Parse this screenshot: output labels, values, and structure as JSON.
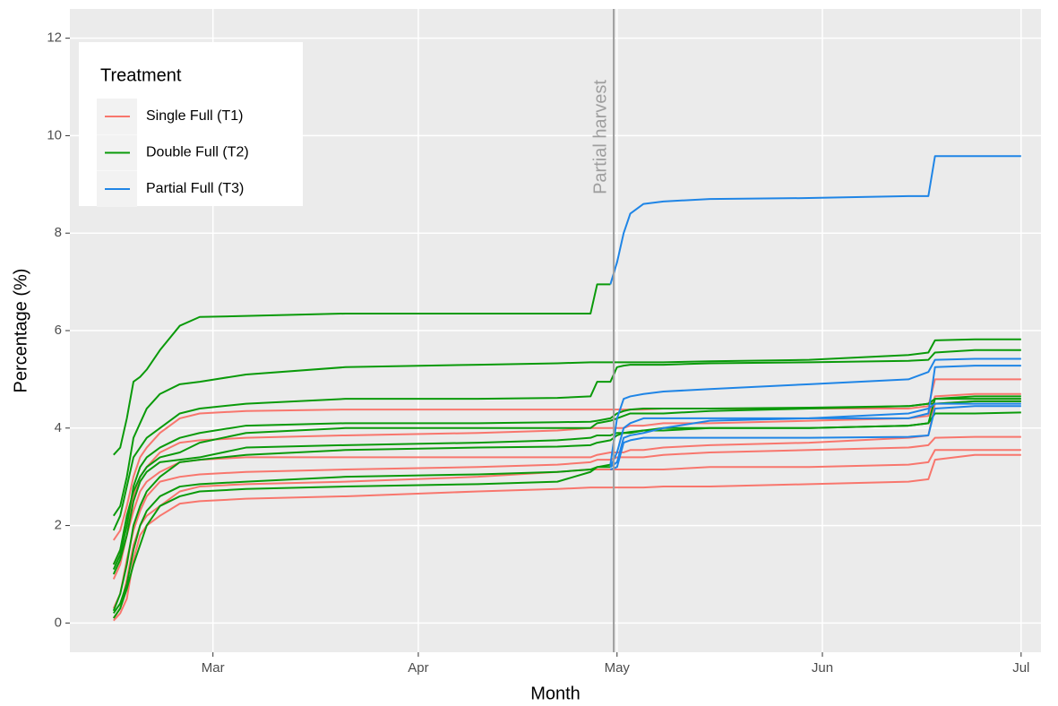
{
  "chart_data": {
    "type": "line",
    "x_label": "Month",
    "y_label": "Percentage (%)",
    "legend_title": "Treatment",
    "legend": "top-left",
    "grid": true,
    "annotation": {
      "text": "Partial harvest",
      "x": 120.5,
      "color": "#9e9e9e"
    },
    "x": [
      45,
      46,
      47,
      48,
      49,
      50,
      52,
      55,
      58,
      65,
      80,
      100,
      112,
      117,
      118,
      120,
      121,
      122,
      123,
      125,
      128,
      135,
      150,
      165,
      168,
      169,
      175,
      182
    ],
    "xlim": [
      38.4,
      185
    ],
    "xticks": [
      {
        "value": 60,
        "label": "Mar"
      },
      {
        "value": 91,
        "label": "Apr"
      },
      {
        "value": 121,
        "label": "May"
      },
      {
        "value": 152,
        "label": "Jun"
      },
      {
        "value": 182,
        "label": "Jul"
      }
    ],
    "ylim": [
      -0.6,
      12.6
    ],
    "yticks": [
      0,
      2,
      4,
      6,
      8,
      10,
      12
    ],
    "series": [
      {
        "name": "Single Full (T1)",
        "color": "#F8766D",
        "values": [
          1.7,
          1.9,
          2.4,
          3.0,
          3.4,
          3.6,
          3.9,
          4.2,
          4.3,
          4.35,
          4.38,
          4.38,
          4.38,
          4.38,
          4.38,
          4.38,
          4.38,
          4.38,
          4.38,
          4.38,
          4.4,
          4.4,
          4.4,
          4.4,
          4.45,
          5.0,
          5.0,
          5.0
        ]
      },
      {
        "name": "Double Full (T2)",
        "color": "#0a9a0a",
        "values": [
          3.45,
          3.6,
          4.2,
          4.95,
          5.05,
          5.2,
          5.6,
          6.1,
          6.28,
          6.3,
          6.35,
          6.35,
          6.35,
          6.35,
          6.95,
          6.95,
          null,
          null,
          null,
          null,
          null,
          null,
          null,
          null,
          null,
          null,
          null,
          null
        ]
      },
      {
        "name": "Partial Full (T3)",
        "color": "#1f85e6",
        "values": [
          null,
          null,
          null,
          null,
          null,
          null,
          null,
          null,
          null,
          null,
          null,
          null,
          null,
          null,
          null,
          6.95,
          7.4,
          8.0,
          8.4,
          8.6,
          8.65,
          8.7,
          8.72,
          8.76,
          8.76,
          9.58,
          9.58,
          9.58
        ]
      },
      {
        "name": "Single Full (T1)",
        "color": "#F8766D",
        "values": [
          1.2,
          1.5,
          2.0,
          2.6,
          3.0,
          3.2,
          3.5,
          3.7,
          3.75,
          3.8,
          3.85,
          3.9,
          3.95,
          4.0,
          4.0,
          4.0,
          4.0,
          4.0,
          4.05,
          4.05,
          4.1,
          4.1,
          4.15,
          4.2,
          4.25,
          4.65,
          4.7,
          4.7
        ]
      },
      {
        "name": "Single Full (T1)",
        "color": "#F8766D",
        "values": [
          0.9,
          1.2,
          1.8,
          2.3,
          2.7,
          2.9,
          3.1,
          3.3,
          3.35,
          3.4,
          3.4,
          3.4,
          3.4,
          3.4,
          3.45,
          3.5,
          3.5,
          3.5,
          3.55,
          3.55,
          3.6,
          3.65,
          3.7,
          3.8,
          3.85,
          4.5,
          4.55,
          4.55
        ]
      },
      {
        "name": "Single Full (T1)",
        "color": "#F8766D",
        "values": [
          0.3,
          0.6,
          1.3,
          1.9,
          2.3,
          2.6,
          2.9,
          3.0,
          3.05,
          3.1,
          3.15,
          3.2,
          3.25,
          3.3,
          3.35,
          3.35,
          3.4,
          3.4,
          3.4,
          3.4,
          3.45,
          3.5,
          3.55,
          3.6,
          3.65,
          3.8,
          3.82,
          3.82
        ]
      },
      {
        "name": "Single Full (T1)",
        "color": "#F8766D",
        "values": [
          0.1,
          0.3,
          0.9,
          1.6,
          2.0,
          2.2,
          2.4,
          2.7,
          2.8,
          2.85,
          2.9,
          3.0,
          3.1,
          3.15,
          3.15,
          3.15,
          3.15,
          3.15,
          3.15,
          3.15,
          3.15,
          3.2,
          3.2,
          3.25,
          3.3,
          3.55,
          3.55,
          3.55
        ]
      },
      {
        "name": "Single Full (T1)",
        "color": "#F8766D",
        "values": [
          0.05,
          0.2,
          0.5,
          1.3,
          1.8,
          2.0,
          2.2,
          2.45,
          2.5,
          2.55,
          2.6,
          2.7,
          2.75,
          2.78,
          2.78,
          2.78,
          2.78,
          2.78,
          2.78,
          2.78,
          2.8,
          2.8,
          2.85,
          2.9,
          2.95,
          3.35,
          3.45,
          3.45
        ]
      },
      {
        "name": "Double Full (T2)",
        "color": "#0a9a0a",
        "values": [
          2.2,
          2.4,
          3.0,
          3.8,
          4.1,
          4.4,
          4.7,
          4.9,
          4.95,
          5.1,
          5.25,
          5.3,
          5.33,
          5.35,
          5.35,
          5.35,
          5.35,
          5.35,
          5.35,
          5.35,
          5.35,
          5.37,
          5.4,
          5.5,
          5.55,
          5.8,
          5.82,
          5.82
        ]
      },
      {
        "name": "Double Full (T2)",
        "color": "#0a9a0a",
        "values": [
          1.9,
          2.2,
          2.8,
          3.4,
          3.6,
          3.8,
          4.0,
          4.3,
          4.4,
          4.5,
          4.6,
          4.6,
          4.62,
          4.65,
          4.95,
          4.95,
          5.25,
          5.28,
          5.3,
          5.3,
          5.3,
          5.33,
          5.35,
          5.38,
          5.4,
          5.55,
          5.6,
          5.6
        ]
      },
      {
        "name": "Double Full (T2)",
        "color": "#0a9a0a",
        "values": [
          1.1,
          1.4,
          2.0,
          2.8,
          3.2,
          3.4,
          3.6,
          3.8,
          3.9,
          4.05,
          4.1,
          4.1,
          4.12,
          4.13,
          4.15,
          4.2,
          4.3,
          4.35,
          4.38,
          4.4,
          4.4,
          4.4,
          4.42,
          4.45,
          4.5,
          4.6,
          4.6,
          4.6
        ]
      },
      {
        "name": "Double Full (T2)",
        "color": "#0a9a0a",
        "values": [
          1.2,
          1.5,
          2.2,
          2.7,
          3.0,
          3.2,
          3.4,
          3.5,
          3.7,
          3.9,
          4.0,
          4.0,
          4.0,
          4.0,
          4.1,
          4.15,
          4.2,
          4.25,
          4.3,
          4.3,
          4.3,
          4.35,
          4.4,
          4.45,
          4.5,
          4.5,
          4.55,
          4.55
        ]
      },
      {
        "name": "Double Full (T2)",
        "color": "#0a9a0a",
        "values": [
          1.0,
          1.3,
          1.8,
          2.5,
          2.9,
          3.1,
          3.3,
          3.35,
          3.4,
          3.6,
          3.65,
          3.7,
          3.75,
          3.8,
          3.85,
          3.85,
          3.9,
          3.9,
          3.92,
          3.95,
          3.95,
          4.0,
          4.0,
          4.05,
          4.1,
          4.3,
          4.3,
          4.32
        ]
      },
      {
        "name": "Double Full (T2)",
        "color": "#0a9a0a",
        "values": [
          0.25,
          0.6,
          1.2,
          2.0,
          2.4,
          2.7,
          3.0,
          3.3,
          3.35,
          3.45,
          3.55,
          3.6,
          3.62,
          3.65,
          3.7,
          3.75,
          3.85,
          3.9,
          3.9,
          3.95,
          4.0,
          4.0,
          4.0,
          4.05,
          4.1,
          4.6,
          4.65,
          4.65
        ]
      },
      {
        "name": "Double Full (T2)",
        "color": "#0a9a0a",
        "values": [
          0.2,
          0.4,
          0.8,
          1.5,
          2.0,
          2.3,
          2.6,
          2.8,
          2.85,
          2.9,
          3.0,
          3.05,
          3.1,
          3.15,
          3.2,
          3.25,
          null,
          null,
          null,
          null,
          null,
          null,
          null,
          null,
          null,
          null,
          null,
          null
        ]
      },
      {
        "name": "Double Full (T2)",
        "color": "#0a9a0a",
        "values": [
          0.1,
          0.3,
          0.7,
          1.2,
          1.6,
          2.0,
          2.4,
          2.6,
          2.7,
          2.75,
          2.8,
          2.85,
          2.9,
          3.1,
          3.2,
          3.2,
          null,
          null,
          null,
          null,
          null,
          null,
          null,
          null,
          null,
          null,
          null,
          null
        ]
      },
      {
        "name": "Partial Full (T3)",
        "color": "#1f85e6",
        "values": [
          null,
          null,
          null,
          null,
          null,
          null,
          null,
          null,
          null,
          null,
          null,
          null,
          null,
          null,
          null,
          3.25,
          4.2,
          4.6,
          4.65,
          4.7,
          4.75,
          4.8,
          4.9,
          5.0,
          5.15,
          5.4,
          5.42,
          5.42
        ]
      },
      {
        "name": "Partial Full (T3)",
        "color": "#1f85e6",
        "values": [
          null,
          null,
          null,
          null,
          null,
          null,
          null,
          null,
          null,
          null,
          null,
          null,
          null,
          null,
          null,
          3.2,
          3.5,
          4.0,
          4.1,
          4.2,
          4.2,
          4.2,
          4.2,
          4.2,
          4.3,
          5.25,
          5.28,
          5.28
        ]
      },
      {
        "name": "Partial Full (T3)",
        "color": "#1f85e6",
        "values": [
          null,
          null,
          null,
          null,
          null,
          null,
          null,
          null,
          null,
          null,
          null,
          null,
          null,
          null,
          null,
          3.2,
          3.3,
          3.8,
          3.85,
          3.9,
          4.0,
          4.15,
          4.2,
          4.3,
          4.4,
          4.5,
          4.5,
          4.5
        ]
      },
      {
        "name": "Partial Full (T3)",
        "color": "#1f85e6",
        "values": [
          null,
          null,
          null,
          null,
          null,
          null,
          null,
          null,
          null,
          null,
          null,
          null,
          null,
          null,
          null,
          3.15,
          3.2,
          3.7,
          3.75,
          3.8,
          3.8,
          3.8,
          3.8,
          3.82,
          3.85,
          4.4,
          4.45,
          4.45
        ]
      }
    ]
  }
}
